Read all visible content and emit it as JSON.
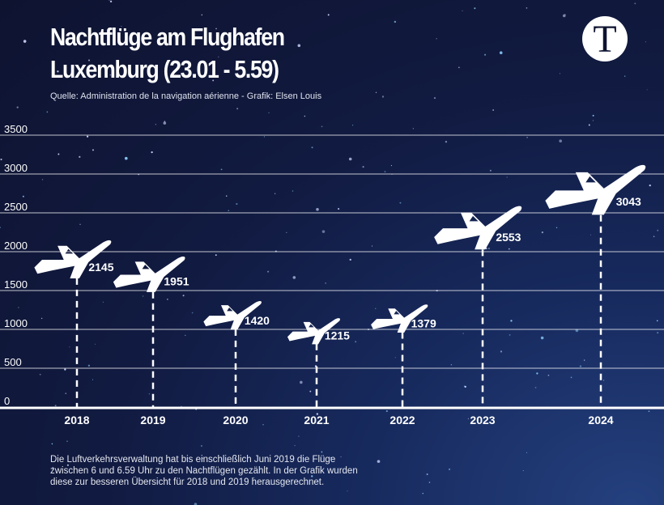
{
  "header": {
    "title_line1": "Nachtflüge am Flughafen",
    "title_line2": "Luxemburg (23.01 - 5.59)",
    "source": "Quelle: Administration de la navigation aérienne - Grafik: Elsen Louis",
    "logo_letter": "T"
  },
  "footnote": {
    "line1": "Die Luftverkehrsverwaltung hat bis einschließlich Juni 2019 die Flüge",
    "line2": "zwischen 6 und 6.59 Uhr zu den Nachtflügen gezählt. In der Grafik wurden",
    "line3": "diese zur besseren Übersicht für 2018 und 2019 herausgerechnet."
  },
  "colors": {
    "background": "#0e1330",
    "marks": "#ffffff"
  },
  "chart_data": {
    "type": "bar",
    "mark_style": "airplane icons with dashed stems",
    "title": "Nachtflüge am Flughafen Luxemburg (23.01 - 5.59)",
    "categories": [
      "2018",
      "2019",
      "2020",
      "2021",
      "2022",
      "2023",
      "2024"
    ],
    "values": [
      2145,
      1951,
      1420,
      1215,
      1379,
      2553,
      3043
    ],
    "yticks": [
      0,
      500,
      1000,
      1500,
      2000,
      2500,
      3000,
      3500
    ],
    "ylim": [
      0,
      3500
    ],
    "grid": true,
    "xlabel": "",
    "ylabel": ""
  }
}
